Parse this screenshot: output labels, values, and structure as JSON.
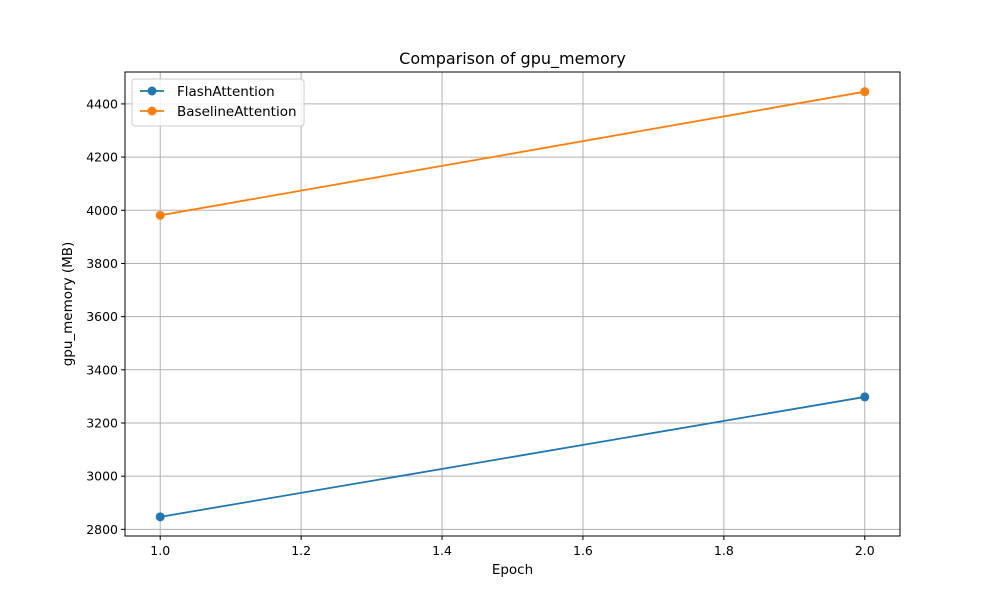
{
  "chart_data": {
    "type": "line",
    "title": "Comparison of gpu_memory",
    "xlabel": "Epoch",
    "ylabel": "gpu_memory (MB)",
    "xlim": [
      0.95,
      2.05
    ],
    "ylim": [
      2775,
      4520
    ],
    "xticks": [
      1.0,
      1.2,
      1.4,
      1.6,
      1.8,
      2.0
    ],
    "xtick_labels": [
      "1.0",
      "1.2",
      "1.4",
      "1.6",
      "1.8",
      "2.0"
    ],
    "yticks": [
      2800,
      3000,
      3200,
      3400,
      3600,
      3800,
      4000,
      4200,
      4400
    ],
    "ytick_labels": [
      "2800",
      "3000",
      "3200",
      "3400",
      "3600",
      "3800",
      "4000",
      "4200",
      "4400"
    ],
    "grid": true,
    "legend_position": "top-left",
    "series": [
      {
        "name": "FlashAttention",
        "color": "#1f77b4",
        "marker": "circle",
        "x": [
          1.0,
          2.0
        ],
        "y": [
          2847,
          3298
        ]
      },
      {
        "name": "BaselineAttention",
        "color": "#ff7f0e",
        "marker": "circle",
        "x": [
          1.0,
          2.0
        ],
        "y": [
          3981,
          4446
        ]
      }
    ]
  }
}
